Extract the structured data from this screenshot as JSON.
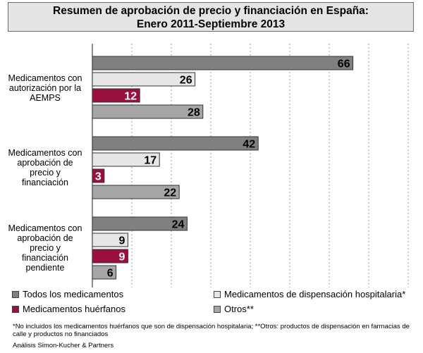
{
  "title": {
    "line1": "Resumen de aprobación de precio y financiación en España:",
    "line2": "Enero 2011-Septiembre 2013"
  },
  "chart_data": {
    "type": "bar",
    "orientation": "horizontal",
    "categories": [
      [
        "Medicamentos con",
        "autorización por la",
        "AEMPS"
      ],
      [
        "Medicamentos con",
        "aprobación de",
        "precio y",
        "financiación"
      ],
      [
        "Medicamentos con",
        "aprobación de",
        "precio y",
        "financiación",
        "pendiente"
      ]
    ],
    "series": [
      {
        "name": "Todos los medicamentos",
        "color": "#808080",
        "values": [
          66,
          42,
          24
        ]
      },
      {
        "name": "Medicamentos de dispensación hospitalaria*",
        "color": "#e6e6e6",
        "values": [
          26,
          17,
          9
        ]
      },
      {
        "name": "Medicamentos huérfanos",
        "color": "#9b0f3c",
        "values": [
          12,
          3,
          9
        ]
      },
      {
        "name": "Otros**",
        "color": "#a6a6a6",
        "values": [
          28,
          22,
          6
        ]
      }
    ],
    "xlim": [
      0,
      80
    ],
    "grid": true,
    "legend_position": "bottom"
  },
  "footnote": "*No incluidos los medicamentos  huérfanos que son de dispensación hospitalaria; **Otros: productos de dispensación en farmacias de calle y productos no financiados",
  "source": "Análisis Simon-Kucher & Partners"
}
